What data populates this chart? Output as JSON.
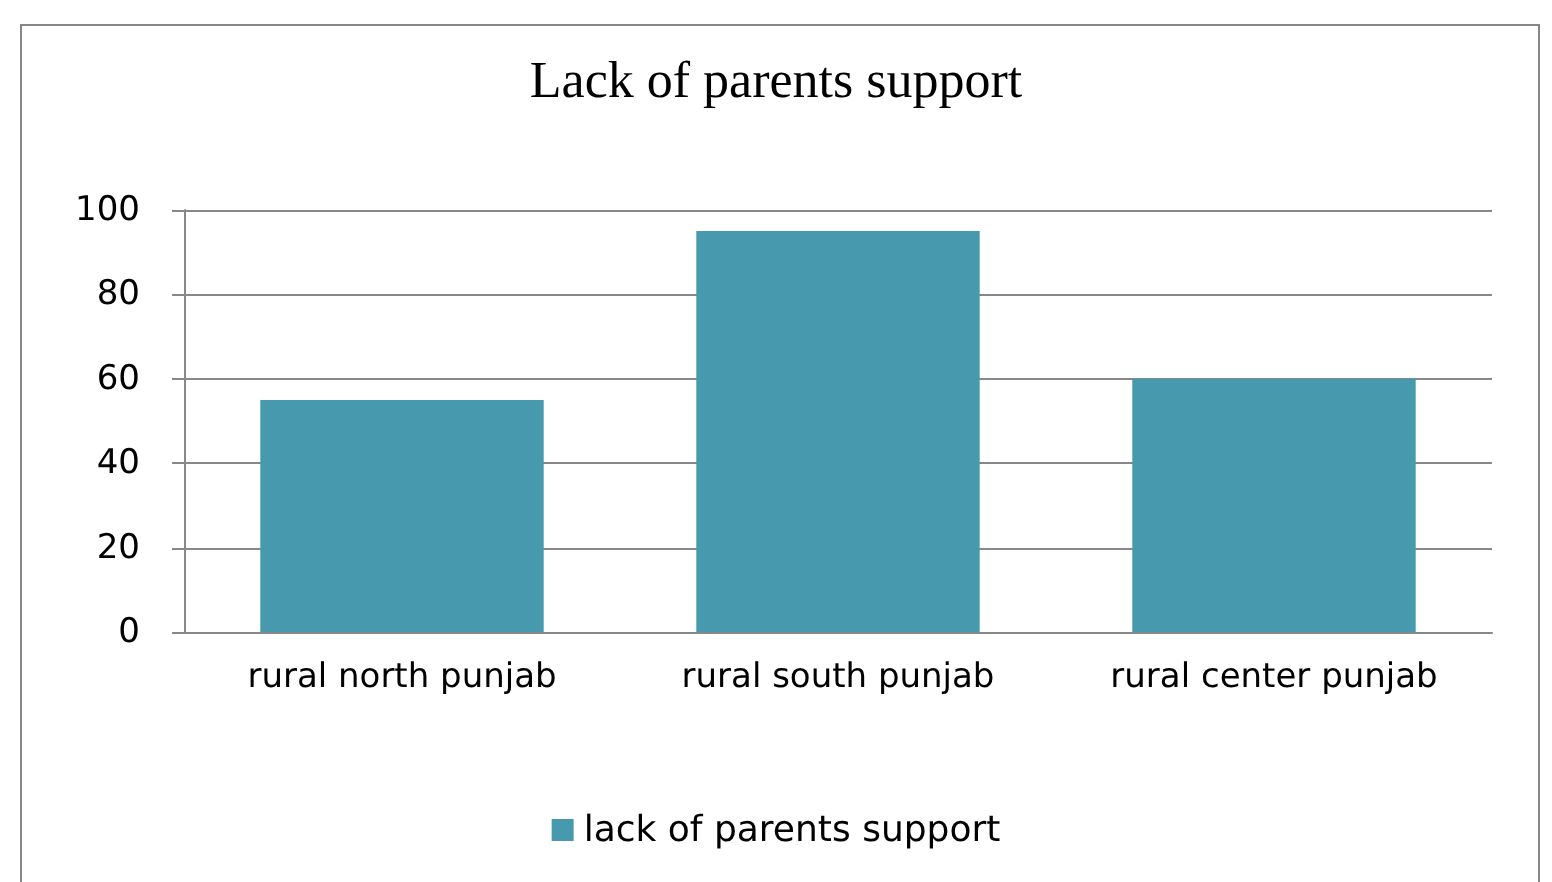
{
  "chart_data": {
    "type": "bar",
    "title": "Lack of parents support",
    "categories": [
      "rural north punjab",
      "rural south punjab",
      "rural center punjab"
    ],
    "series": [
      {
        "name": "lack of parents support",
        "color": "#4799ae",
        "values": [
          55,
          95,
          60
        ]
      }
    ],
    "ylim": [
      0,
      100
    ],
    "yticks": [
      0,
      20,
      40,
      60,
      80,
      100
    ],
    "grid": "y",
    "legend": "bottom"
  }
}
